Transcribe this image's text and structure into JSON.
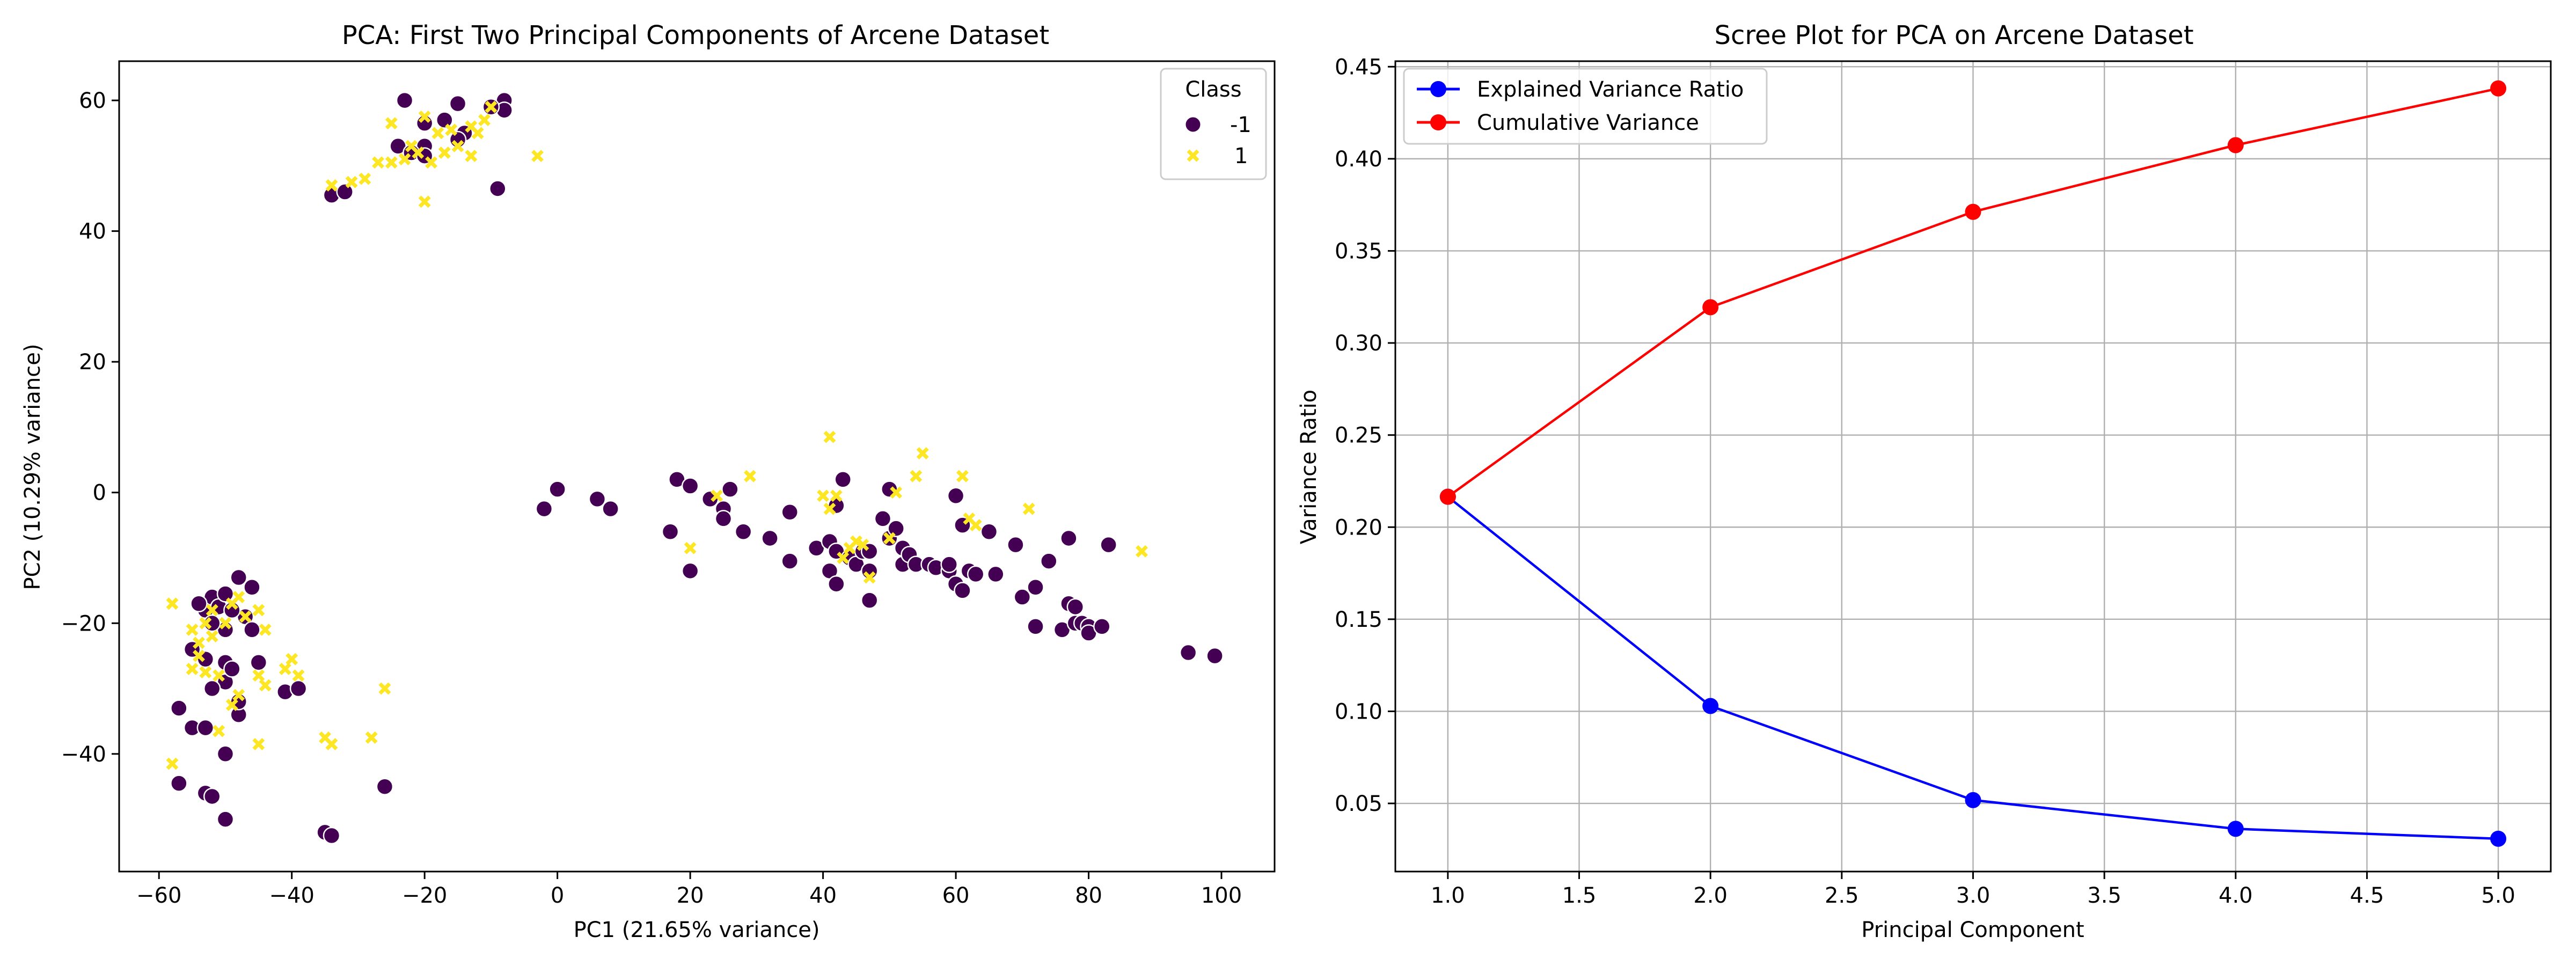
{
  "chart_data": [
    {
      "type": "scatter",
      "title": "PCA: First Two Principal Components of Arcene Dataset",
      "xlabel": "PC1 (21.65% variance)",
      "ylabel": "PC2 (10.29% variance)",
      "xlim": [
        -66,
        108
      ],
      "ylim": [
        -58,
        66
      ],
      "xticks": [
        -60,
        -40,
        -20,
        0,
        20,
        40,
        60,
        80,
        100
      ],
      "yticks": [
        -40,
        -20,
        0,
        20,
        40,
        60
      ],
      "grid": false,
      "legend": {
        "title": "Class",
        "placement": "top-right"
      },
      "series": [
        {
          "name": "-1",
          "marker": "circle",
          "color": "#440154",
          "points": [
            [
              -23,
              60
            ],
            [
              -15,
              59.5
            ],
            [
              -8,
              60
            ],
            [
              -8,
              58.5
            ],
            [
              -10,
              59
            ],
            [
              -17,
              57
            ],
            [
              -20,
              56.5
            ],
            [
              -14,
              55
            ],
            [
              -15,
              54
            ],
            [
              -20,
              53
            ],
            [
              -24,
              53
            ],
            [
              -22,
              52
            ],
            [
              -20,
              51.5
            ],
            [
              -34,
              45.5
            ],
            [
              -32,
              46
            ],
            [
              -9,
              46.5
            ],
            [
              -57,
              -44.5
            ],
            [
              -53,
              -46
            ],
            [
              -52,
              -46.5
            ],
            [
              -50,
              -50
            ],
            [
              -35,
              -52
            ],
            [
              -34,
              -52.5
            ],
            [
              -26,
              -45
            ],
            [
              -55,
              -36
            ],
            [
              -53,
              -36
            ],
            [
              -50,
              -40
            ],
            [
              -57,
              -33
            ],
            [
              -50,
              -29
            ],
            [
              -48,
              -34
            ],
            [
              -48,
              -32
            ],
            [
              -45,
              -26
            ],
            [
              -41,
              -30.5
            ],
            [
              -39,
              -30
            ],
            [
              -50,
              -26
            ],
            [
              -52,
              -30
            ],
            [
              -49,
              -27
            ],
            [
              -53,
              -25.5
            ],
            [
              -55,
              -24
            ],
            [
              -53,
              -18
            ],
            [
              -52,
              -16
            ],
            [
              -51,
              -17.5
            ],
            [
              -50,
              -15.5
            ],
            [
              -48,
              -13
            ],
            [
              -46,
              -14.5
            ],
            [
              -47,
              -19
            ],
            [
              -49,
              -18
            ],
            [
              -50,
              -21
            ],
            [
              -46,
              -21
            ],
            [
              -52,
              -20
            ],
            [
              -54,
              -17
            ],
            [
              -2,
              -2.5
            ],
            [
              0,
              0.5
            ],
            [
              6,
              -1
            ],
            [
              8,
              -2.5
            ],
            [
              17,
              -6
            ],
            [
              18,
              2
            ],
            [
              20,
              1
            ],
            [
              20,
              -12
            ],
            [
              23,
              -1
            ],
            [
              25,
              -2.5
            ],
            [
              25,
              -4
            ],
            [
              26,
              0.5
            ],
            [
              28,
              -6
            ],
            [
              32,
              -7
            ],
            [
              35,
              -3
            ],
            [
              35,
              -10.5
            ],
            [
              39,
              -8.5
            ],
            [
              41,
              -7.5
            ],
            [
              41,
              -12
            ],
            [
              42,
              -2
            ],
            [
              42,
              -9
            ],
            [
              42,
              -14
            ],
            [
              43,
              2
            ],
            [
              44,
              -10
            ],
            [
              45,
              -11
            ],
            [
              46,
              -9
            ],
            [
              47,
              -16.5
            ],
            [
              47,
              -12
            ],
            [
              47,
              -9
            ],
            [
              49,
              -4
            ],
            [
              50,
              0.5
            ],
            [
              50,
              -7
            ],
            [
              51,
              -5.5
            ],
            [
              52,
              -8.5
            ],
            [
              52,
              -11
            ],
            [
              53,
              -9.5
            ],
            [
              54,
              -11
            ],
            [
              56,
              -11
            ],
            [
              57,
              -11.5
            ],
            [
              59,
              -12
            ],
            [
              59,
              -11
            ],
            [
              60,
              -0.5
            ],
            [
              60,
              -14
            ],
            [
              61,
              -5
            ],
            [
              61,
              -15
            ],
            [
              62,
              -12
            ],
            [
              63,
              -12.5
            ],
            [
              65,
              -6
            ],
            [
              66,
              -12.5
            ],
            [
              69,
              -8
            ],
            [
              70,
              -16
            ],
            [
              72,
              -14.5
            ],
            [
              72,
              -20.5
            ],
            [
              74,
              -10.5
            ],
            [
              76,
              -21
            ],
            [
              77,
              -7
            ],
            [
              77,
              -17
            ],
            [
              78,
              -17.5
            ],
            [
              78,
              -20
            ],
            [
              79,
              -20
            ],
            [
              80,
              -20.5
            ],
            [
              80,
              -21.5
            ],
            [
              82,
              -20.5
            ],
            [
              83,
              -8
            ],
            [
              95,
              -24.5
            ],
            [
              99,
              -25
            ]
          ]
        },
        {
          "name": "1",
          "marker": "x",
          "color": "#fde725",
          "points": [
            [
              -25,
              56.5
            ],
            [
              -20,
              57.5
            ],
            [
              -18,
              55
            ],
            [
              -16,
              55.5
            ],
            [
              -13,
              56
            ],
            [
              -11,
              57
            ],
            [
              -12,
              55
            ],
            [
              -10,
              59
            ],
            [
              -22,
              53
            ],
            [
              -21,
              52
            ],
            [
              -19,
              50.5
            ],
            [
              -17,
              52
            ],
            [
              -23,
              51
            ],
            [
              -25,
              50.5
            ],
            [
              -27,
              50.5
            ],
            [
              -29,
              48
            ],
            [
              -31,
              47.5
            ],
            [
              -34,
              47
            ],
            [
              -20,
              44.5
            ],
            [
              -13,
              51.5
            ],
            [
              -3,
              51.5
            ],
            [
              -15,
              53
            ],
            [
              -58,
              -17
            ],
            [
              -55,
              -21
            ],
            [
              -53,
              -20
            ],
            [
              -52,
              -22
            ],
            [
              -54,
              -23
            ],
            [
              -55,
              -27
            ],
            [
              -53,
              -27.5
            ],
            [
              -50,
              -20
            ],
            [
              -49,
              -17
            ],
            [
              -47,
              -19
            ],
            [
              -45,
              -18
            ],
            [
              -44,
              -21
            ],
            [
              -45,
              -28
            ],
            [
              -44,
              -29.5
            ],
            [
              -41,
              -27
            ],
            [
              -40,
              -25.5
            ],
            [
              -39,
              -28
            ],
            [
              -49,
              -32.5
            ],
            [
              -48,
              -31
            ],
            [
              -51,
              -28
            ],
            [
              -54,
              -25
            ],
            [
              -51,
              -36.5
            ],
            [
              -45,
              -38.5
            ],
            [
              -35,
              -37.5
            ],
            [
              -34,
              -38.5
            ],
            [
              -28,
              -37.5
            ],
            [
              -26,
              -30
            ],
            [
              -58,
              -41.5
            ],
            [
              -52,
              -18
            ],
            [
              -48,
              -16
            ],
            [
              20,
              -8.5
            ],
            [
              24,
              -0.5
            ],
            [
              29,
              2.5
            ],
            [
              40,
              -0.5
            ],
            [
              41,
              8.5
            ],
            [
              41,
              -2.5
            ],
            [
              42,
              -0.5
            ],
            [
              43,
              -10
            ],
            [
              44,
              -8.5
            ],
            [
              45,
              -7.5
            ],
            [
              46,
              -8
            ],
            [
              47,
              -13
            ],
            [
              50,
              -7
            ],
            [
              51,
              0
            ],
            [
              54,
              2.5
            ],
            [
              55,
              6
            ],
            [
              61,
              2.5
            ],
            [
              62,
              -4
            ],
            [
              63,
              -5
            ],
            [
              71,
              -2.5
            ],
            [
              88,
              -9
            ]
          ]
        }
      ]
    },
    {
      "type": "line",
      "title": "Scree Plot for PCA on Arcene Dataset",
      "xlabel": "Principal Component",
      "ylabel": "Variance Ratio",
      "xlim": [
        0.8,
        5.2
      ],
      "ylim": [
        0.013,
        0.453
      ],
      "xticks": [
        1.0,
        1.5,
        2.0,
        2.5,
        3.0,
        3.5,
        4.0,
        4.5,
        5.0
      ],
      "yticks": [
        0.05,
        0.1,
        0.15,
        0.2,
        0.25,
        0.3,
        0.35,
        0.4,
        0.45
      ],
      "grid": true,
      "legend": {
        "placement": "top-left"
      },
      "x": [
        1,
        2,
        3,
        4,
        5
      ],
      "series": [
        {
          "name": "Explained Variance Ratio",
          "color": "#0000ff",
          "values": [
            0.2165,
            0.1029,
            0.0518,
            0.0362,
            0.0308
          ]
        },
        {
          "name": "Cumulative Variance",
          "color": "#ff0000",
          "values": [
            0.2165,
            0.3194,
            0.3712,
            0.4074,
            0.4382
          ]
        }
      ]
    }
  ]
}
